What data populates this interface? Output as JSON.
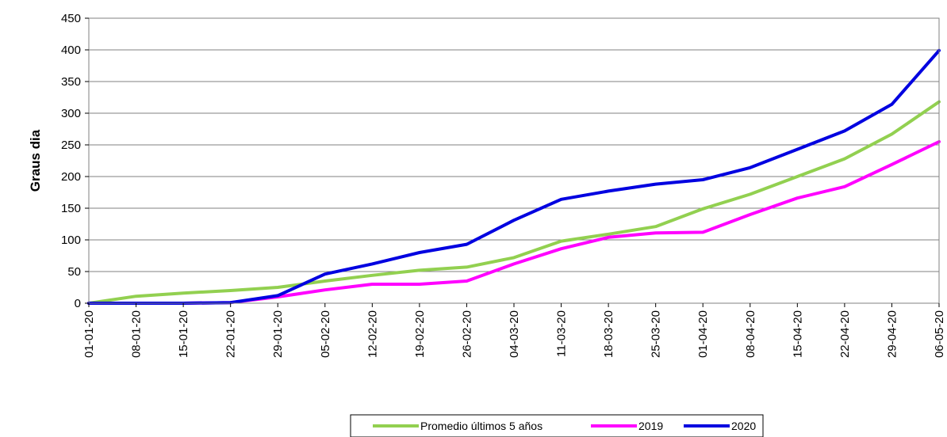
{
  "chart_data": {
    "type": "line",
    "title": "",
    "xlabel": "",
    "ylabel": "Graus dia",
    "ylim": [
      0,
      450
    ],
    "yticks": [
      0,
      50,
      100,
      150,
      200,
      250,
      300,
      350,
      400,
      450
    ],
    "grid": "horizontal",
    "legend": "bottom",
    "x": [
      "01-01-20",
      "08-01-20",
      "15-01-20",
      "22-01-20",
      "29-01-20",
      "05-02-20",
      "12-02-20",
      "19-02-20",
      "26-02-20",
      "04-03-20",
      "11-03-20",
      "18-03-20",
      "25-03-20",
      "01-04-20",
      "08-04-20",
      "15-04-20",
      "22-04-20",
      "29-04-20",
      "06-05-20"
    ],
    "series": [
      {
        "name": "Promedio últimos 5 años",
        "color": "#92D050",
        "values": [
          0,
          11,
          16,
          20,
          25,
          35,
          44,
          52,
          57,
          72,
          98,
          109,
          121,
          149,
          172,
          200,
          228,
          267,
          318
        ]
      },
      {
        "name": "2019",
        "color": "#FF00FF",
        "values": [
          0,
          0,
          0,
          1,
          10,
          21,
          30,
          30,
          35,
          62,
          86,
          104,
          111,
          112,
          140,
          166,
          184,
          219,
          255
        ]
      },
      {
        "name": "2020",
        "color": "#0000E0",
        "values": [
          0,
          0,
          0,
          1,
          12,
          46,
          62,
          80,
          93,
          131,
          164,
          177,
          188,
          195,
          214,
          243,
          272,
          314,
          399
        ]
      }
    ]
  }
}
